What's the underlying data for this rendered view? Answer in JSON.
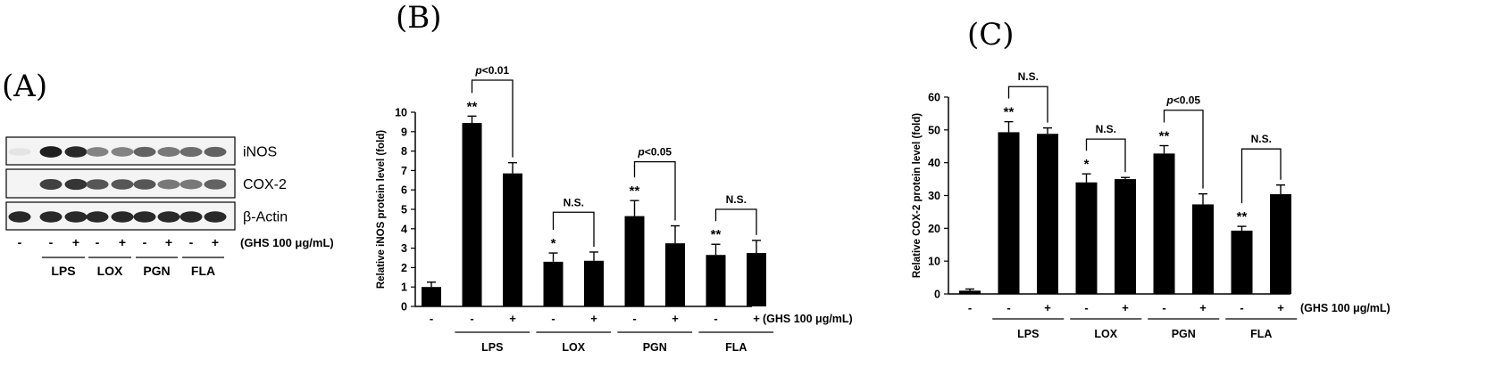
{
  "panels": {
    "A": {
      "letter": "(A)",
      "blots": [
        "iNOS",
        "COX-2",
        "β-Actin"
      ],
      "treatment_signs": [
        "-",
        "-",
        "+",
        "-",
        "+",
        "-",
        "+",
        "-",
        "+"
      ],
      "treatment_label": "(GHS 100 μg/mL)",
      "groups": [
        "LPS",
        "LOX",
        "PGN",
        "FLA"
      ]
    },
    "B": {
      "letter": "(B)"
    },
    "C": {
      "letter": "(C)"
    }
  },
  "chart_data": [
    {
      "type": "bar",
      "panel": "B",
      "ylabel": "Relative iNOS protein level (fold)",
      "ylim": [
        0,
        10
      ],
      "yticks": [
        0,
        1,
        2,
        3,
        4,
        5,
        6,
        7,
        8,
        9,
        10
      ],
      "x_signs": [
        "-",
        "-",
        "+",
        "-",
        "+",
        "-",
        "+",
        "-",
        "+"
      ],
      "treatment_label": "(GHS 100 μg/mL)",
      "groups": [
        "LPS",
        "LOX",
        "PGN",
        "FLA"
      ],
      "values": [
        1.0,
        9.45,
        6.85,
        2.3,
        2.35,
        4.65,
        3.25,
        2.65,
        2.75
      ],
      "errors": [
        0.25,
        0.35,
        0.55,
        0.45,
        0.45,
        0.8,
        0.9,
        0.55,
        0.65
      ],
      "stars": [
        "",
        "**",
        "",
        "*",
        "",
        "**",
        "",
        "**",
        ""
      ],
      "comparisons": [
        {
          "pair": [
            1,
            2
          ],
          "label": "p<0.01",
          "y": 11.65
        },
        {
          "pair": [
            3,
            4
          ],
          "label": "N.S.",
          "y": 4.85
        },
        {
          "pair": [
            5,
            6
          ],
          "label": "p<0.05",
          "y": 7.45
        },
        {
          "pair": [
            7,
            8
          ],
          "label": "N.S.",
          "y": 5.0
        }
      ]
    },
    {
      "type": "bar",
      "panel": "C",
      "ylabel": "Relative COX-2 protein level (fold)",
      "ylim": [
        0,
        60
      ],
      "yticks": [
        0,
        10,
        20,
        30,
        40,
        50,
        60
      ],
      "x_signs": [
        "-",
        "-",
        "+",
        "-",
        "+",
        "-",
        "+",
        "-",
        "+"
      ],
      "treatment_label": "(GHS 100 μg/mL)",
      "groups": [
        "LPS",
        "LOX",
        "PGN",
        "FLA"
      ],
      "values": [
        1.0,
        49.3,
        48.8,
        34.0,
        35.0,
        42.8,
        27.3,
        19.3,
        30.4
      ],
      "errors": [
        0.5,
        3.2,
        1.8,
        2.6,
        0.5,
        2.4,
        3.2,
        1.3,
        2.8
      ],
      "stars": [
        "",
        "**",
        "",
        "*",
        "",
        "**",
        "",
        "**",
        ""
      ],
      "comparisons": [
        {
          "pair": [
            1,
            2
          ],
          "label": "N.S.",
          "y": 63.2
        },
        {
          "pair": [
            3,
            4
          ],
          "label": "N.S.",
          "y": 47.2
        },
        {
          "pair": [
            5,
            6
          ],
          "label": "p<0.05",
          "y": 56.0
        },
        {
          "pair": [
            7,
            8
          ],
          "label": "N.S.",
          "y": 44.2
        }
      ]
    }
  ]
}
